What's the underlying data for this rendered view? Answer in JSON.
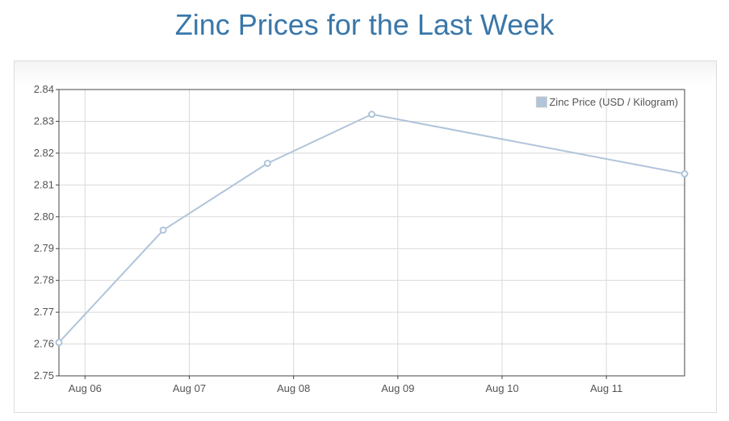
{
  "page": {
    "title": "Zinc Prices for the Last Week"
  },
  "chart_data": {
    "type": "line",
    "title": "Zinc Prices for the Last Week",
    "xlabel": "",
    "ylabel": "",
    "x_ticks": [
      "Aug 06",
      "Aug 07",
      "Aug 08",
      "Aug 09",
      "Aug 10",
      "Aug 11"
    ],
    "xlim": [
      "2023-08-05T18:00",
      "2023-08-11T18:00"
    ],
    "ylim": [
      2.75,
      2.84
    ],
    "y_ticks": [
      "2.75",
      "2.76",
      "2.77",
      "2.78",
      "2.79",
      "2.80",
      "2.81",
      "2.82",
      "2.83",
      "2.84"
    ],
    "grid": true,
    "legend_position": "top-right",
    "series": [
      {
        "name": "Zinc Price (USD / Kilogram)",
        "color": "#b0c4da",
        "points": [
          {
            "x": "2023-08-05T18:00",
            "y": 2.7605
          },
          {
            "x": "2023-08-06T18:00",
            "y": 2.7958
          },
          {
            "x": "2023-08-07T18:00",
            "y": 2.8168
          },
          {
            "x": "2023-08-08T18:00",
            "y": 2.8322
          },
          {
            "x": "2023-08-11T18:00",
            "y": 2.8135
          }
        ]
      }
    ]
  }
}
